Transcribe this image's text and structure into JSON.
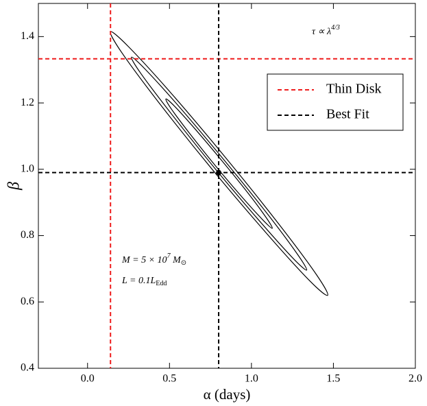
{
  "chart_data": {
    "type": "contour",
    "xlabel": "α (days)",
    "ylabel": "β",
    "xlim": [
      -0.3,
      2.0
    ],
    "ylim": [
      0.4,
      1.5
    ],
    "xticks": [
      {
        "value": 0,
        "label": "0.0"
      },
      0.5,
      {
        "value": 1,
        "label": "1.0"
      },
      1.5,
      {
        "value": 2,
        "label": "2.0"
      }
    ],
    "yticks": [
      0.4,
      0.6,
      0.8,
      {
        "value": 1,
        "label": "1.0"
      },
      1.2,
      1.4
    ],
    "contour_color": "#000000",
    "contours": [
      {
        "x": [
          1.465,
          1.397,
          1.17,
          0.844,
          0.507,
          0.249,
          0.14,
          0.207,
          0.435,
          0.76,
          1.097,
          1.355
        ],
        "y": [
          0.62,
          0.682,
          0.833,
          1.034,
          1.231,
          1.37,
          1.415,
          1.353,
          1.201,
          1.0,
          0.804,
          0.664
        ]
      },
      {
        "x": [
          1.337,
          1.279,
          1.095,
          0.831,
          0.56,
          0.353,
          0.268,
          0.325,
          0.51,
          0.773,
          1.044,
          1.251
        ],
        "y": [
          0.696,
          0.745,
          0.867,
          1.029,
          1.188,
          1.301,
          1.338,
          1.289,
          1.168,
          1.005,
          0.847,
          0.733
        ]
      },
      {
        "x": [
          1.127,
          1.093,
          0.981,
          0.821,
          0.657,
          0.531,
          0.478,
          0.511,
          0.623,
          0.783,
          0.948,
          1.074
        ],
        "y": [
          0.822,
          0.852,
          0.927,
          1.025,
          1.121,
          1.19,
          1.212,
          1.182,
          1.108,
          1.009,
          0.913,
          0.845
        ]
      }
    ],
    "reference_lines": [
      {
        "name": "Thin Disk",
        "color": "#ee1c1c",
        "x": 0.14,
        "y": 1.333
      },
      {
        "name": "Best Fit",
        "color": "#000000",
        "x": 0.8,
        "y": 0.99
      }
    ],
    "best_fit_point": {
      "x": 0.8,
      "y": 0.99
    },
    "legend": "upper right",
    "annotations": [
      {
        "text": "τ ∝ λ",
        "sup": "4/3"
      },
      {
        "text": "M = 5 × 10",
        "sup": "7",
        "rest": " M",
        "sub": "⊙"
      },
      {
        "text": "L = 0.1L",
        "sub": "Edd"
      }
    ]
  }
}
